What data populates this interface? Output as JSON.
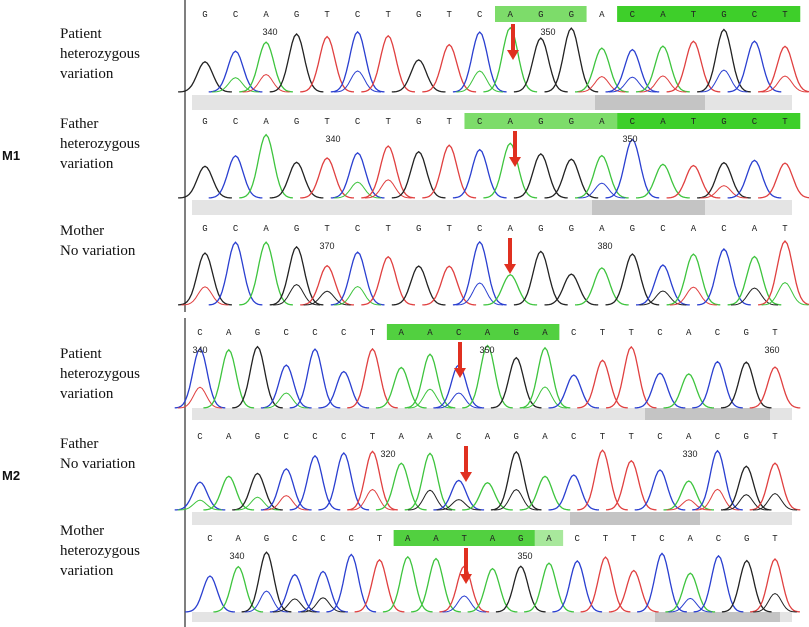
{
  "groups": [
    {
      "label": "M1",
      "rows": [
        {
          "label": [
            "Patient",
            "heterozygous",
            "variation"
          ],
          "bases": [
            "G",
            "C",
            "A",
            "G",
            "T",
            "C",
            "T",
            "G",
            "T",
            "C",
            "A",
            "G",
            "G",
            "A",
            "C",
            "A",
            "T",
            "G",
            "C",
            "T"
          ],
          "positions": [
            340,
            350
          ]
        },
        {
          "label": [
            "Father",
            "heterozygous",
            "variation"
          ],
          "bases": [
            "G",
            "C",
            "A",
            "G",
            "T",
            "C",
            "T",
            "G",
            "T",
            "C",
            "A",
            "G",
            "G",
            "A",
            "C",
            "A",
            "T",
            "G",
            "C",
            "T"
          ],
          "positions": [
            340,
            350
          ]
        },
        {
          "label": [
            "Mother",
            "No variation"
          ],
          "bases": [
            "G",
            "C",
            "A",
            "G",
            "T",
            "C",
            "T",
            "G",
            "T",
            "C",
            "A",
            "G",
            "G",
            "A",
            "G",
            "C",
            "A",
            "C",
            "A",
            "T"
          ],
          "positions": [
            370,
            380
          ]
        }
      ]
    },
    {
      "label": "M2",
      "rows": [
        {
          "label": [
            "Patient",
            "heterozygous",
            "variation"
          ],
          "bases": [
            "C",
            "A",
            "G",
            "C",
            "C",
            "C",
            "T",
            "A",
            "A",
            "C",
            "A",
            "G",
            "A",
            "C",
            "T",
            "T",
            "C",
            "A",
            "C",
            "G",
            "T"
          ],
          "positions": [
            340,
            350,
            360
          ]
        },
        {
          "label": [
            "Father",
            "No variation"
          ],
          "bases": [
            "C",
            "A",
            "G",
            "C",
            "C",
            "C",
            "T",
            "A",
            "A",
            "C",
            "A",
            "G",
            "A",
            "C",
            "T",
            "T",
            "C",
            "A",
            "C",
            "G",
            "T"
          ],
          "positions": [
            320,
            330
          ]
        },
        {
          "label": [
            "Mother",
            "heterozygous",
            "variation"
          ],
          "bases": [
            "C",
            "A",
            "G",
            "C",
            "C",
            "C",
            "T",
            "A",
            "A",
            "T",
            "A",
            "G",
            "A",
            "C",
            "T",
            "T",
            "C",
            "A",
            "C",
            "G",
            "T"
          ],
          "positions": [
            340,
            350
          ]
        }
      ]
    }
  ]
}
